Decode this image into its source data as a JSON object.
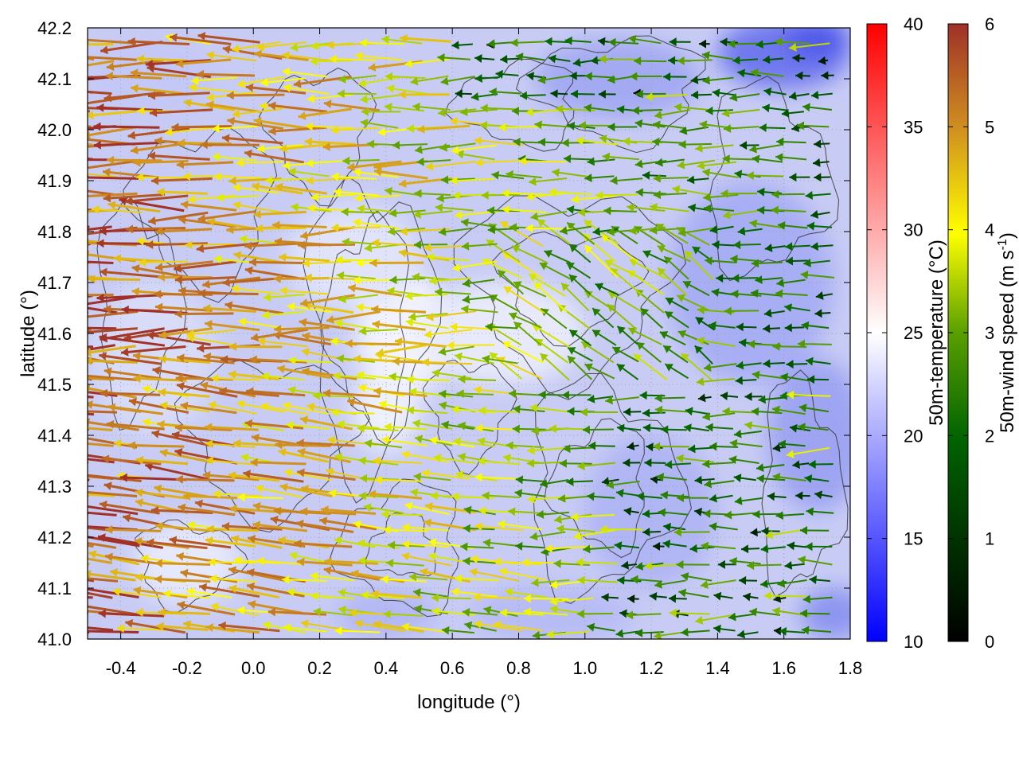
{
  "chart_data": {
    "type": "heatmap",
    "title": "",
    "xlabel": "longitude (°)",
    "ylabel": "latitude (°)",
    "xlim": [
      -0.5,
      1.8
    ],
    "ylim": [
      41.0,
      42.2
    ],
    "xticks": [
      "-0.4",
      "-0.2",
      "0.0",
      "0.2",
      "0.4",
      "0.6",
      "0.8",
      "1.0",
      "1.2",
      "1.4",
      "1.6",
      "1.8"
    ],
    "yticks": [
      "41.0",
      "41.1",
      "41.2",
      "41.3",
      "41.4",
      "41.5",
      "41.6",
      "41.7",
      "41.8",
      "41.9",
      "42.0",
      "42.1",
      "42.2"
    ],
    "grid": true,
    "colorbars": [
      {
        "name": "temperature",
        "label": "50m-temperature (°C)",
        "range": [
          10,
          40
        ],
        "ticks": [
          "10",
          "15",
          "20",
          "25",
          "30",
          "35",
          "40"
        ],
        "colors": [
          "#0000ff",
          "#ffffff",
          "#ff0000"
        ]
      },
      {
        "name": "wind-speed",
        "label": "50m-wind speed (m s-1)",
        "label_main": "50m-wind speed (m s",
        "label_sup": "-1",
        "label_end": ")",
        "range": [
          0,
          6
        ],
        "ticks": [
          "0",
          "1",
          "2",
          "3",
          "4",
          "5",
          "6"
        ],
        "colors": [
          "#000000",
          "#006400",
          "#ffff00",
          "#c07828",
          "#a03028"
        ]
      }
    ],
    "temperature_field_note_range": [
      16,
      25
    ],
    "wind_field": {
      "prevailing_direction": "westward",
      "speed_range": [
        0,
        6
      ],
      "strong_region": "west (lon < 0.6)",
      "weak_region": "southeast (lon > 1.1, lat < 41.5)"
    },
    "overlays": [
      "terrain contour lines",
      "wind vectors"
    ]
  }
}
